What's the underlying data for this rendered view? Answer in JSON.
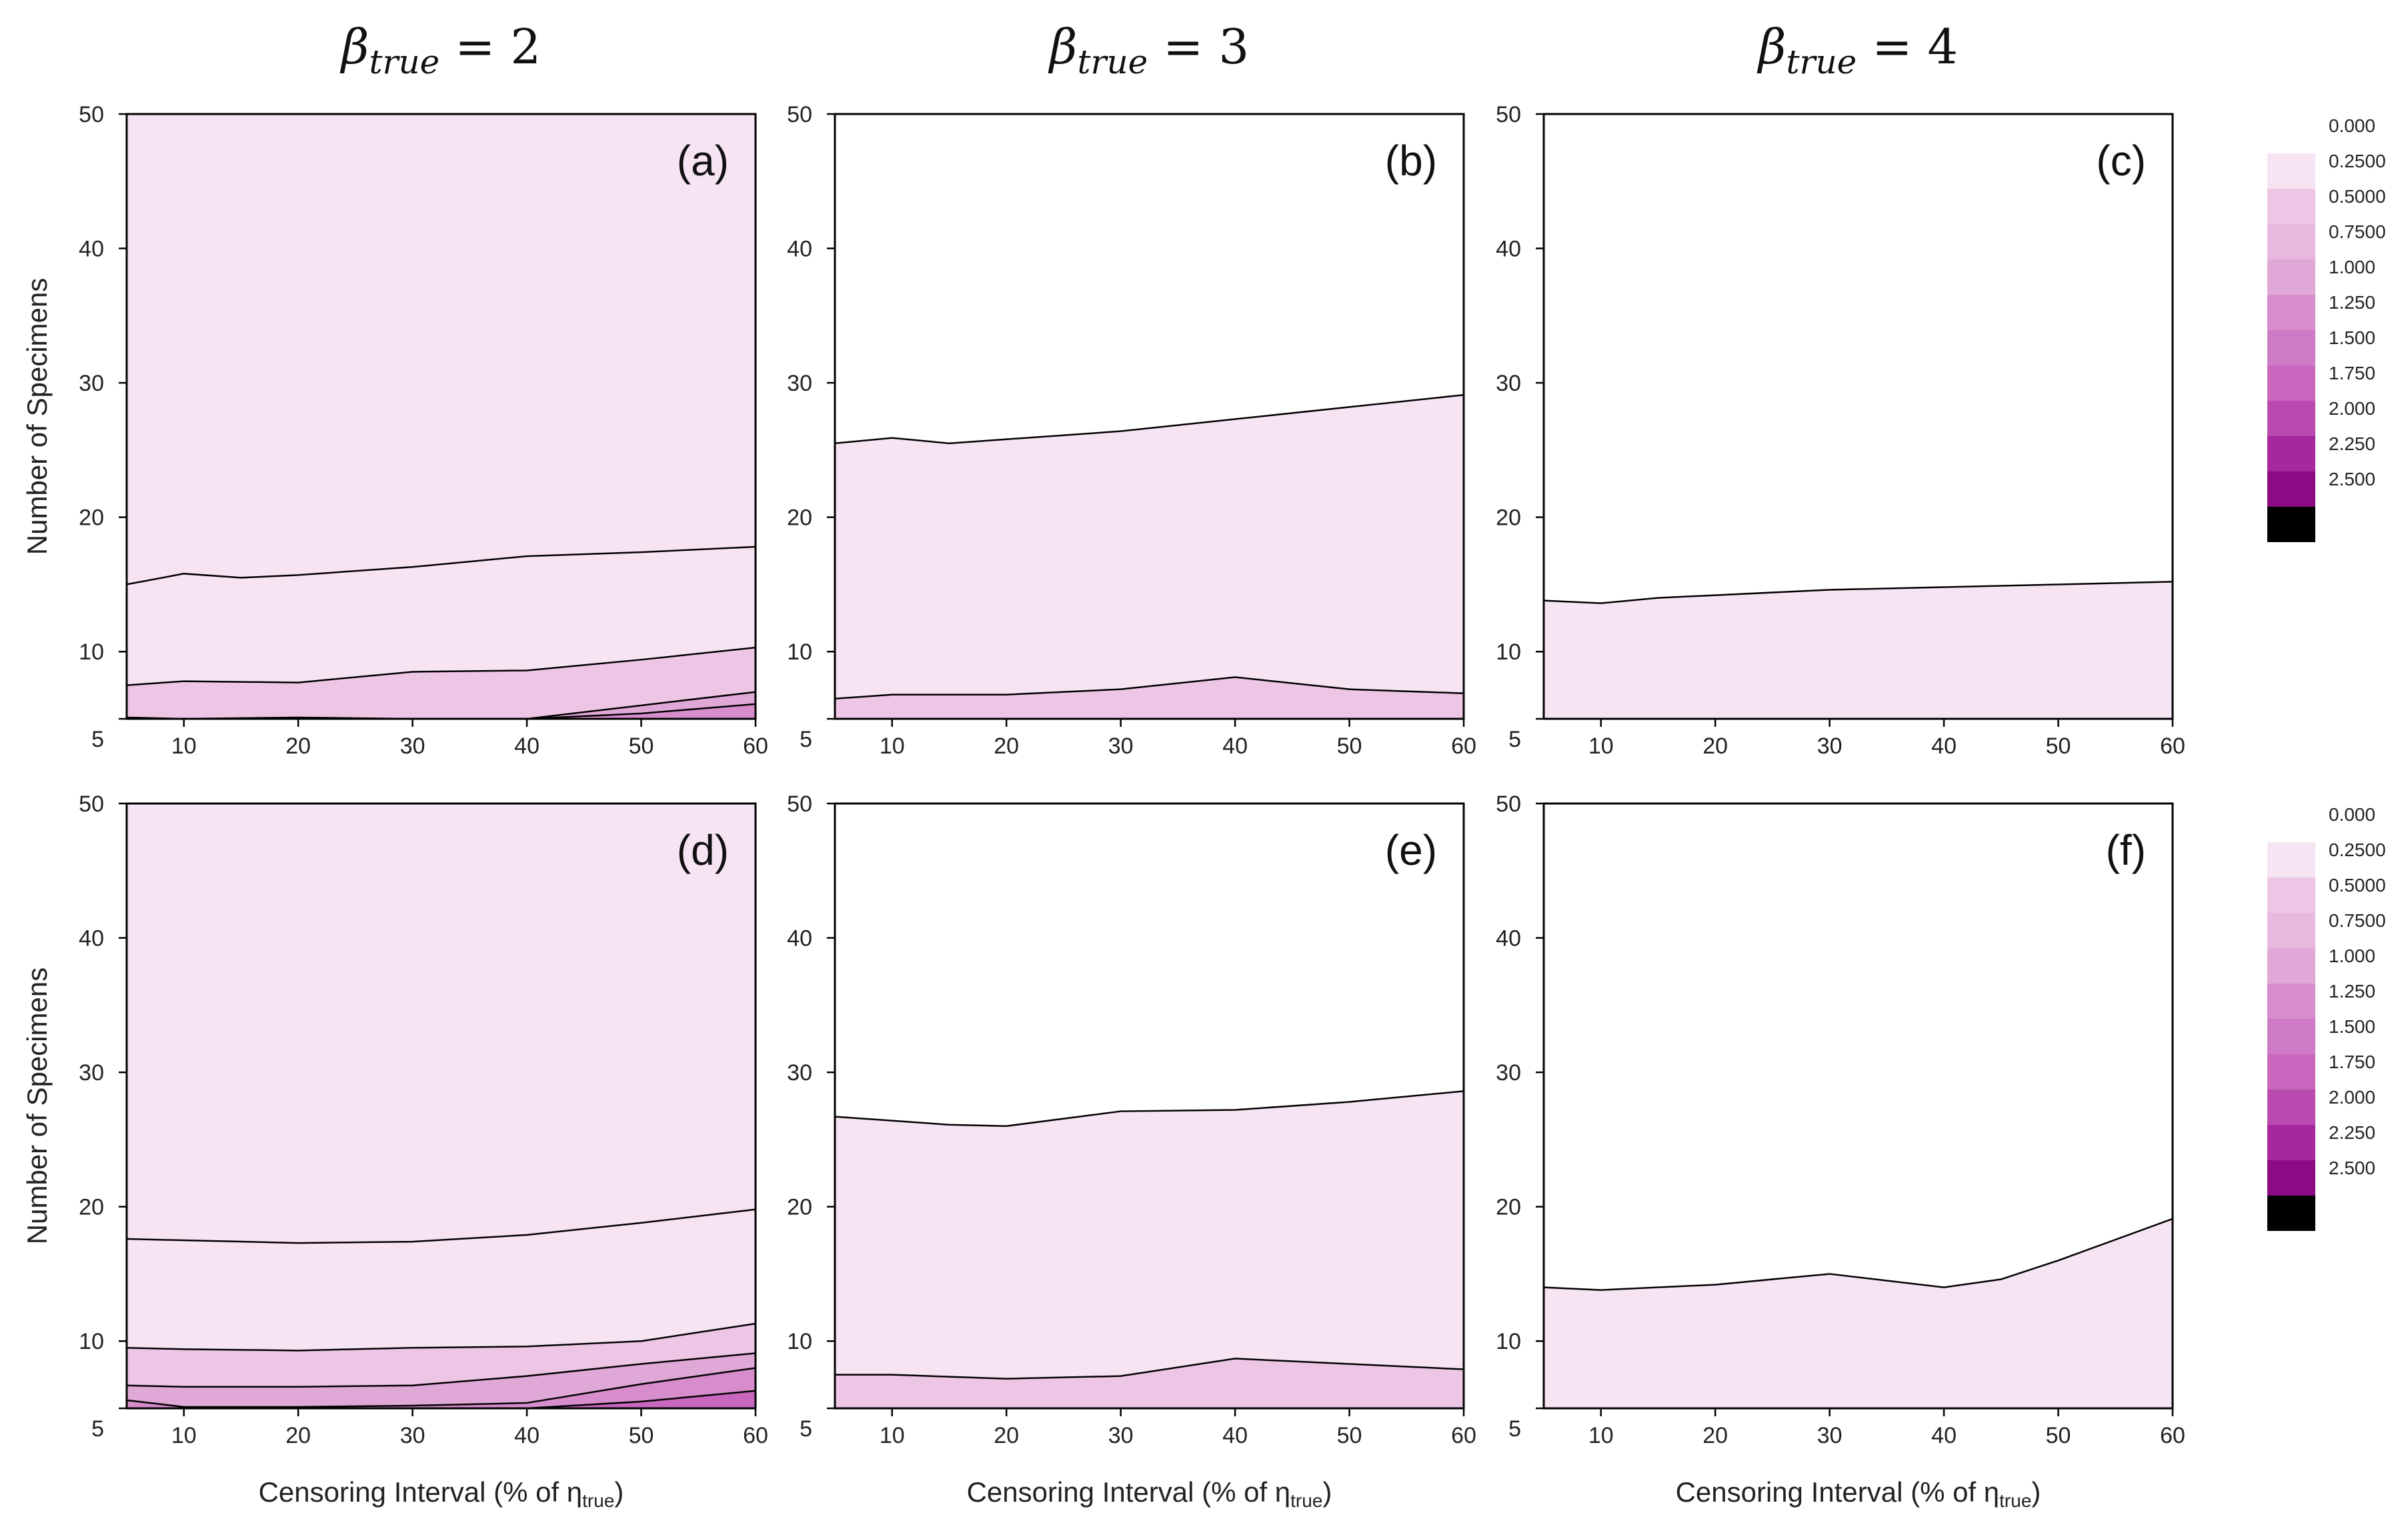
{
  "figure": {
    "column_titles": [
      {
        "main": "β",
        "sub": "true",
        "rest": " = 2"
      },
      {
        "main": "β",
        "sub": "true",
        "rest": " = 3"
      },
      {
        "main": "β",
        "sub": "true",
        "rest": " = 4"
      }
    ],
    "colors": {
      "band0": "#f7e4f3",
      "band1": "#edc6e5",
      "band2": "#e0a8d7",
      "band3": "#d78ccc",
      "band4": "#c967bf",
      "axis": "#000000"
    }
  },
  "colorbars": [
    {
      "ticks": [
        "0.000",
        "0.2500",
        "0.5000",
        "0.7500",
        "1.000",
        "1.250",
        "1.500",
        "1.750",
        "2.000",
        "2.250",
        "2.500"
      ],
      "colors": [
        "#f7e4f3",
        "#edc6e5",
        "#e8b8df",
        "#e0a8d7",
        "#d78ccc",
        "#cf7ac4",
        "#c967bf",
        "#b94aaf",
        "#a6289f",
        "#8d0a85",
        "#000000"
      ]
    },
    {
      "ticks": [
        "0.000",
        "0.2500",
        "0.5000",
        "0.7500",
        "1.000",
        "1.250",
        "1.500",
        "1.750",
        "2.000",
        "2.250",
        "2.500"
      ],
      "colors": [
        "#f7e4f3",
        "#edc6e5",
        "#e8b8df",
        "#e0a8d7",
        "#d78ccc",
        "#cf7ac4",
        "#c967bf",
        "#b94aaf",
        "#a6289f",
        "#8d0a85",
        "#000000"
      ]
    }
  ],
  "chart_data": [
    {
      "type": "contour",
      "label": "(a)",
      "xlabel": "",
      "ylabel": "Number of Specimens",
      "xlim": [
        5,
        60
      ],
      "ylim": [
        5,
        50
      ],
      "xticks": [
        "10",
        "20",
        "30",
        "40",
        "50",
        "60"
      ],
      "yticks": [
        "5",
        "10",
        "20",
        "30",
        "40",
        "50"
      ],
      "contours": [
        {
          "x": [
            5,
            10,
            15,
            20,
            30,
            40,
            50,
            60
          ],
          "y": [
            15,
            15.8,
            15.5,
            15.7,
            16.3,
            17.1,
            17.4,
            17.8
          ]
        },
        {
          "x": [
            5,
            10,
            20,
            30,
            40,
            50,
            60
          ],
          "y": [
            7.5,
            7.8,
            7.7,
            8.5,
            8.6,
            9.4,
            10.3
          ]
        },
        {
          "x": [
            5,
            10,
            20,
            30,
            40,
            50,
            60
          ],
          "y": [
            5.1,
            5,
            5.1,
            5,
            5,
            6,
            7
          ]
        },
        {
          "x": [
            40,
            50,
            60
          ],
          "y": [
            5,
            5.4,
            6.1
          ]
        }
      ]
    },
    {
      "type": "contour",
      "label": "(b)",
      "xlabel": "",
      "ylabel": "",
      "xlim": [
        5,
        60
      ],
      "ylim": [
        5,
        50
      ],
      "xticks": [
        "10",
        "20",
        "30",
        "40",
        "50",
        "60"
      ],
      "yticks": [
        "5",
        "10",
        "20",
        "30",
        "40",
        "50"
      ],
      "contours": [
        {
          "x": [
            5,
            10,
            15,
            20,
            30,
            40,
            50,
            60
          ],
          "y": [
            25.5,
            25.9,
            25.5,
            25.8,
            26.4,
            27.3,
            28.2,
            29.1
          ]
        },
        {
          "x": [
            5,
            10,
            20,
            30,
            40,
            50,
            60
          ],
          "y": [
            6.5,
            6.8,
            6.8,
            7.2,
            8.1,
            7.2,
            6.9
          ]
        }
      ]
    },
    {
      "type": "contour",
      "label": "(c)",
      "xlabel": "",
      "ylabel": "",
      "xlim": [
        5,
        60
      ],
      "ylim": [
        5,
        50
      ],
      "xticks": [
        "10",
        "20",
        "30",
        "40",
        "50",
        "60"
      ],
      "yticks": [
        "5",
        "10",
        "20",
        "30",
        "40",
        "50"
      ],
      "contours": [
        {
          "x": [
            5,
            10,
            15,
            20,
            30,
            40,
            50,
            60
          ],
          "y": [
            13.8,
            13.6,
            14,
            14.2,
            14.6,
            14.8,
            15,
            15.2
          ]
        }
      ]
    },
    {
      "type": "contour",
      "label": "(d)",
      "xlabel": "Censoring Interval (% of η",
      "xlabel_sub": "true",
      "xlabel_end": ")",
      "ylabel": "Number of Specimens",
      "xlim": [
        5,
        60
      ],
      "ylim": [
        5,
        50
      ],
      "xticks": [
        "10",
        "20",
        "30",
        "40",
        "50",
        "60"
      ],
      "yticks": [
        "5",
        "10",
        "20",
        "30",
        "40",
        "50"
      ],
      "contours": [
        {
          "x": [
            5,
            10,
            20,
            30,
            40,
            50,
            60
          ],
          "y": [
            17.6,
            17.5,
            17.3,
            17.4,
            17.9,
            18.8,
            19.8
          ]
        },
        {
          "x": [
            5,
            10,
            20,
            30,
            40,
            50,
            60
          ],
          "y": [
            9.5,
            9.4,
            9.3,
            9.5,
            9.6,
            10,
            11.3
          ]
        },
        {
          "x": [
            5,
            10,
            20,
            30,
            40,
            50,
            60
          ],
          "y": [
            6.7,
            6.6,
            6.6,
            6.7,
            7.4,
            8.3,
            9.1
          ]
        },
        {
          "x": [
            5,
            10,
            20,
            30,
            40,
            50,
            60
          ],
          "y": [
            5.6,
            5.1,
            5.1,
            5.2,
            5.4,
            6.8,
            8
          ]
        },
        {
          "x": [
            40,
            50,
            60
          ],
          "y": [
            5,
            5.5,
            6.3
          ]
        }
      ]
    },
    {
      "type": "contour",
      "label": "(e)",
      "xlabel": "Censoring Interval (% of η",
      "xlabel_sub": "true",
      "xlabel_end": ")",
      "ylabel": "",
      "xlim": [
        5,
        60
      ],
      "ylim": [
        5,
        50
      ],
      "xticks": [
        "10",
        "20",
        "30",
        "40",
        "50",
        "60"
      ],
      "yticks": [
        "5",
        "10",
        "20",
        "30",
        "40",
        "50"
      ],
      "contours": [
        {
          "x": [
            5,
            10,
            15,
            20,
            30,
            40,
            50,
            60
          ],
          "y": [
            26.7,
            26.4,
            26.1,
            26,
            27.1,
            27.2,
            27.8,
            28.6
          ]
        },
        {
          "x": [
            5,
            10,
            20,
            30,
            40,
            50,
            60
          ],
          "y": [
            7.5,
            7.5,
            7.2,
            7.4,
            8.7,
            8.3,
            7.9
          ]
        }
      ]
    },
    {
      "type": "contour",
      "label": "(f)",
      "xlabel": "Censoring Interval (% of η",
      "xlabel_sub": "true",
      "xlabel_end": ")",
      "ylabel": "",
      "xlim": [
        5,
        60
      ],
      "ylim": [
        5,
        50
      ],
      "xticks": [
        "10",
        "20",
        "30",
        "40",
        "50",
        "60"
      ],
      "yticks": [
        "5",
        "10",
        "20",
        "30",
        "40",
        "50"
      ],
      "contours": [
        {
          "x": [
            5,
            10,
            20,
            30,
            40,
            45,
            50,
            60
          ],
          "y": [
            14,
            13.8,
            14.2,
            15,
            14,
            14.6,
            16,
            19.1
          ]
        }
      ]
    }
  ]
}
